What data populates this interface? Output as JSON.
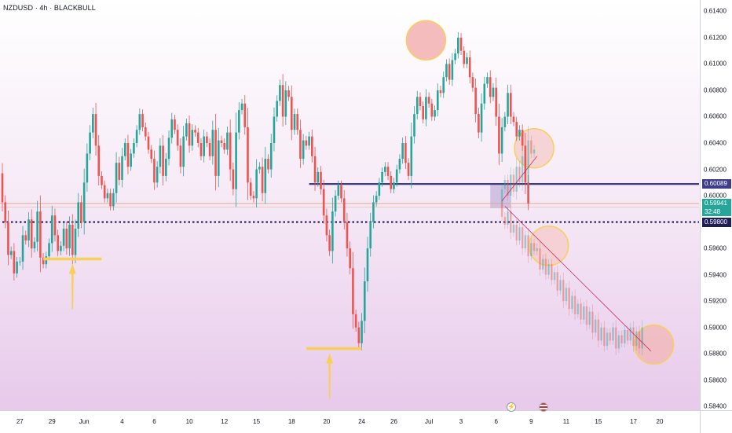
{
  "header": {
    "symbol_line": "NZDUSD · 4h · BLACKBULL"
  },
  "price_tags": {
    "horizontal_level": "0.60089",
    "current_price": "0.59941",
    "countdown": "32:48",
    "dotted_level": "0.59800"
  },
  "colors": {
    "bull": "#26a69a",
    "bear": "#ef5350",
    "level_line": "#3f3d8a",
    "dotted_line": "#1f1d55",
    "marker": "#f6d15a",
    "current_tag": "#26a69a",
    "level_tag": "#3f3d8a",
    "dotted_tag": "#1f1d55"
  },
  "events": {
    "lightning_icon": "lightning-icon",
    "flag_icon": "us-flag-icon"
  },
  "chart_data": {
    "type": "candlestick",
    "title": "",
    "xlabel": "",
    "ylabel": "",
    "ylim": [
      0.583,
      0.6145
    ],
    "price_ticks": [
      "0.61400",
      "0.61200",
      "0.61000",
      "0.60800",
      "0.60600",
      "0.60400",
      "0.60200",
      "0.60000",
      "0.59600",
      "0.59400",
      "0.59200",
      "0.59000",
      "0.58800",
      "0.58600",
      "0.58400"
    ],
    "date_ticks": [
      {
        "label": "27",
        "bar": 6
      },
      {
        "label": "29",
        "bar": 17
      },
      {
        "label": "Jun",
        "bar": 28
      },
      {
        "label": "4",
        "bar": 41
      },
      {
        "label": "6",
        "bar": 52
      },
      {
        "label": "10",
        "bar": 64
      },
      {
        "label": "12",
        "bar": 76
      },
      {
        "label": "15",
        "bar": 87
      },
      {
        "label": "18",
        "bar": 99
      },
      {
        "label": "20",
        "bar": 111
      },
      {
        "label": "24",
        "bar": 123
      },
      {
        "label": "26",
        "bar": 134
      },
      {
        "label": "Jul",
        "bar": 146
      },
      {
        "label": "3",
        "bar": 157
      },
      {
        "label": "6",
        "bar": 169
      },
      {
        "label": "9",
        "bar": 181
      },
      {
        "label": "11",
        "bar": 193
      },
      {
        "label": "15",
        "bar": 204
      },
      {
        "label": "17",
        "bar": 216
      },
      {
        "label": "20",
        "bar": 225
      }
    ],
    "horizontal_lines": [
      {
        "price": 0.60089,
        "style": "solid",
        "from_bar": 105
      },
      {
        "price": 0.598,
        "style": "dotted",
        "from_bar": 0
      }
    ],
    "candle_segments": [
      {
        "from": 0,
        "points": [
          0.6017,
          0.5995,
          0.598,
          0.5955,
          0.5958,
          0.5941,
          0.595,
          0.595,
          0.597,
          0.5966,
          0.5982,
          0.596,
          0.5965,
          0.5988,
          0.5953,
          0.5948,
          0.5954
        ]
      },
      {
        "from": 16,
        "points": [
          0.5954,
          0.5964,
          0.5985,
          0.597,
          0.5958,
          0.5962,
          0.5975,
          0.596,
          0.5978,
          0.5955,
          0.5975,
          0.5995,
          0.598,
          0.601,
          0.6032,
          0.6048,
          0.6062,
          0.6038,
          0.6015,
          0.6008,
          0.5998,
          0.6002,
          0.5992,
          0.6002,
          0.6025,
          0.6012,
          0.603,
          0.604,
          0.6022,
          0.6032,
          0.604,
          0.605,
          0.6062,
          0.6052,
          0.6045,
          0.6035,
          0.6028,
          0.601,
          0.6022,
          0.6038,
          0.6015,
          0.6028,
          0.6044,
          0.6058,
          0.605,
          0.6038,
          0.6022,
          0.6045,
          0.6055,
          0.6038,
          0.605,
          0.6048,
          0.604,
          0.603,
          0.6045,
          0.604,
          0.603,
          0.605,
          0.6015,
          0.6042,
          0.604,
          0.6035,
          0.6048,
          0.602,
          0.6005,
          0.6048,
          0.6065,
          0.607,
          0.6052,
          0.601,
          0.6,
          0.5998,
          0.602,
          0.6022,
          0.6002,
          0.6028,
          0.602,
          0.604,
          0.606,
          0.6072,
          0.6084,
          0.606,
          0.608,
          0.6075,
          0.605,
          0.6062,
          0.605,
          0.6028,
          0.6042,
          0.6038,
          0.6045,
          0.603,
          0.601,
          0.6018,
          0.6005,
          0.5985,
          0.597,
          0.5958,
          0.5988,
          0.6,
          0.6008,
          0.5998,
          0.598,
          0.596,
          0.5945,
          0.591,
          0.59,
          0.5888,
          0.5905,
          0.5935,
          0.596,
          0.598,
          0.5995,
          0.6,
          0.601,
          0.6018,
          0.6022,
          0.6015,
          0.6005,
          0.601,
          0.602,
          0.6028,
          0.604,
          0.6025,
          0.6015,
          0.6045,
          0.6062,
          0.6075,
          0.6068,
          0.6058,
          0.6075,
          0.607,
          0.606,
          0.6065,
          0.608,
          0.6078,
          0.609,
          0.61,
          0.6088,
          0.6103,
          0.6108,
          0.612,
          0.611,
          0.61,
          0.6105,
          0.609,
          0.6082,
          0.6062,
          0.6048,
          0.607,
          0.6085,
          0.609,
          0.6075,
          0.6082,
          0.606,
          0.6032,
          0.6052,
          0.606,
          0.6078,
          0.606,
          0.6056,
          0.6045,
          0.605,
          0.6038,
          0.601,
          0.5994
        ]
      },
      {
        "from": 171,
        "faded": true,
        "points": [
          0.5994,
          0.6005,
          0.6012,
          0.6,
          0.6016,
          0.6003,
          0.6022,
          0.601,
          0.603,
          0.601,
          0.6042,
          0.6032,
          0.6035
        ]
      },
      {
        "from": 171,
        "faded": true,
        "points": [
          0.5994,
          0.5984,
          0.5978,
          0.5988,
          0.5972,
          0.5978,
          0.5966,
          0.5976,
          0.596,
          0.597,
          0.5954,
          0.5964,
          0.5958,
          0.596,
          0.5944,
          0.5952,
          0.594,
          0.5948,
          0.5936,
          0.5942,
          0.5928,
          0.5936,
          0.592,
          0.593,
          0.5914,
          0.5924,
          0.591,
          0.5918,
          0.5906,
          0.5916,
          0.5902,
          0.5912,
          0.5896,
          0.5906,
          0.589,
          0.59,
          0.5886,
          0.5896,
          0.589,
          0.59,
          0.5884,
          0.5894,
          0.5888,
          0.5898,
          0.589,
          0.59,
          0.5886,
          0.5897,
          0.5884,
          0.59
        ]
      }
    ],
    "trend_lines": [
      {
        "x1_bar": 171,
        "y1": 0.5996,
        "x2_bar": 183,
        "y2": 0.603
      },
      {
        "x1_bar": 172,
        "y1": 0.5992,
        "x2_bar": 222,
        "y2": 0.5882
      }
    ],
    "highlight_circles": [
      {
        "bar": 145,
        "price": 0.6118,
        "fill": "#f2a7a7"
      },
      {
        "bar": 182,
        "price": 0.6036,
        "fill": "#f6c9c9"
      },
      {
        "bar": 187,
        "price": 0.5962,
        "fill": "#f6c9c9"
      },
      {
        "bar": 223,
        "price": 0.5887,
        "fill": "#f2b5b5"
      }
    ],
    "support_marks": [
      {
        "bar_from": 14,
        "bar_to": 34,
        "price": 0.5952,
        "arrow_bar": 24
      },
      {
        "bar_from": 104,
        "bar_to": 123,
        "price": 0.5884,
        "arrow_bar": 112
      }
    ],
    "shaded_box": {
      "bar_from": 167,
      "bar_to": 174,
      "top": 0.60085,
      "bottom": 0.59905
    }
  }
}
